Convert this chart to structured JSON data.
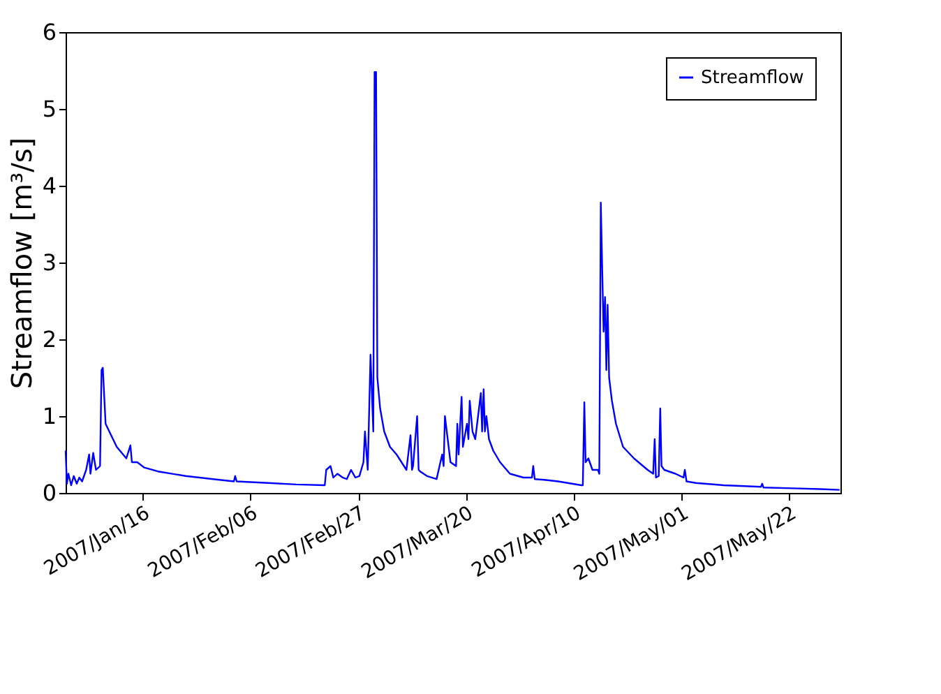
{
  "chart_data": {
    "type": "line",
    "ylabel": "Streamflow [m³/s]",
    "legend": "top right",
    "grid": false,
    "line_style": "solid",
    "xlim": [
      "2007-01-01",
      "2007-06-01"
    ],
    "ylim": [
      0,
      6
    ],
    "yticks": [
      0,
      1,
      2,
      3,
      4,
      5,
      6
    ],
    "xticks": [
      {
        "value": "2007-01-16",
        "label": "2007/Jan/16"
      },
      {
        "value": "2007-02-06",
        "label": "2007/Feb/06"
      },
      {
        "value": "2007-02-27",
        "label": "2007/Feb/27"
      },
      {
        "value": "2007-03-20",
        "label": "2007/Mar/20"
      },
      {
        "value": "2007-04-10",
        "label": "2007/Apr/10"
      },
      {
        "value": "2007-05-01",
        "label": "2007/May/01"
      },
      {
        "value": "2007-05-22",
        "label": "2007/May/22"
      }
    ],
    "series": [
      {
        "name": "Streamflow",
        "color": "#0000ff",
        "x": [
          "2007-01-01T00:00",
          "2007-01-01T06:00",
          "2007-01-01T13:00",
          "2007-01-02T02:00",
          "2007-01-02T14:00",
          "2007-01-03T04:00",
          "2007-01-03T16:00",
          "2007-01-04T05:00",
          "2007-01-05T00:00",
          "2007-01-05T14:00",
          "2007-01-05T20:00",
          "2007-01-06T09:00",
          "2007-01-06T22:00",
          "2007-01-07T17:00",
          "2007-01-08T00:00",
          "2007-01-08T06:00",
          "2007-01-08T19:00",
          "2007-01-09T21:00",
          "2007-01-10T23:00",
          "2007-01-12T20:00",
          "2007-01-13T15:00",
          "2007-01-13T22:00",
          "2007-01-14T23:00",
          "2007-01-16T08:00",
          "2007-01-19T00:00",
          "2007-01-24T09:00",
          "2007-01-29T18:00",
          "2007-02-02T19:00",
          "2007-02-03T01:00",
          "2007-02-03T08:00",
          "2007-02-09T12:00",
          "2007-02-14T22:00",
          "2007-02-20T12:00",
          "2007-02-20T19:00",
          "2007-02-21T15:00",
          "2007-02-22T04:00",
          "2007-02-22T23:00",
          "2007-02-24T00:00",
          "2007-02-24T19:00",
          "2007-02-25T15:00",
          "2007-02-26T11:00",
          "2007-02-27T06:00",
          "2007-02-28T01:00",
          "2007-02-28T08:00",
          "2007-02-28T21:00",
          "2007-03-01T10:00",
          "2007-03-01T23:00",
          "2007-03-02T05:00",
          "2007-03-02T12:00",
          "2007-03-02T18:00",
          "2007-03-03T07:00",
          "2007-03-04T02:00",
          "2007-03-05T05:00",
          "2007-03-06T12:00",
          "2007-03-08T10:00",
          "2007-03-09T05:00",
          "2007-03-09T12:00",
          "2007-03-09T17:00",
          "2007-03-10T12:00",
          "2007-03-10T19:00",
          "2007-03-11T02:00",
          "2007-03-12T10:00",
          "2007-03-14T07:00",
          "2007-03-15T09:00",
          "2007-03-15T16:00",
          "2007-03-15T22:00",
          "2007-03-17T00:00",
          "2007-03-18T02:00",
          "2007-03-18T08:00",
          "2007-03-18T14:00",
          "2007-03-19T04:00",
          "2007-03-19T10:00",
          "2007-03-20T05:00",
          "2007-03-20T12:00",
          "2007-03-20T18:00",
          "2007-03-21T07:00",
          "2007-03-21T20:00",
          "2007-03-22T22:00",
          "2007-03-23T04:00",
          "2007-03-23T11:00",
          "2007-03-23T17:00",
          "2007-03-24T00:00",
          "2007-03-24T12:00",
          "2007-03-25T08:00",
          "2007-03-26T16:00",
          "2007-03-28T14:00",
          "2007-03-31T05:00",
          "2007-04-01T21:00",
          "2007-04-02T03:00",
          "2007-04-02T10:00",
          "2007-04-04T07:00",
          "2007-04-07T00:00",
          "2007-04-11T12:00",
          "2007-04-11T19:00",
          "2007-04-12T02:00",
          "2007-04-12T08:00",
          "2007-04-12T21:00",
          "2007-04-13T16:00",
          "2007-04-14T18:00",
          "2007-04-15T00:00",
          "2007-04-15T07:00",
          "2007-04-15T13:00",
          "2007-04-15T20:00",
          "2007-04-16T03:00",
          "2007-04-16T09:00",
          "2007-04-16T15:00",
          "2007-04-16T22:00",
          "2007-04-17T11:00",
          "2007-04-18T06:00",
          "2007-04-19T15:00",
          "2007-04-21T18:00",
          "2007-04-24T10:00",
          "2007-04-25T12:00",
          "2007-04-25T19:00",
          "2007-04-26T01:00",
          "2007-04-26T14:00",
          "2007-04-26T21:00",
          "2007-04-27T03:00",
          "2007-04-27T16:00",
          "2007-04-29T20:00",
          "2007-05-01T10:00",
          "2007-05-01T16:00",
          "2007-05-02T00:00",
          "2007-05-03T20:00",
          "2007-05-09T05:00",
          "2007-05-16T12:00",
          "2007-05-16T18:00",
          "2007-05-17T00:00",
          "2007-05-22T16:00",
          "2007-05-28T00:00",
          "2007-05-31T20:00"
        ],
        "values": [
          0.55,
          0.12,
          0.25,
          0.1,
          0.22,
          0.12,
          0.2,
          0.15,
          0.3,
          0.5,
          0.25,
          0.52,
          0.3,
          0.35,
          1.6,
          1.63,
          0.9,
          0.75,
          0.6,
          0.45,
          0.62,
          0.4,
          0.4,
          0.33,
          0.28,
          0.22,
          0.18,
          0.15,
          0.22,
          0.15,
          0.13,
          0.11,
          0.1,
          0.3,
          0.35,
          0.2,
          0.25,
          0.2,
          0.18,
          0.3,
          0.2,
          0.22,
          0.4,
          0.8,
          0.3,
          1.8,
          0.8,
          5.48,
          5.48,
          1.5,
          1.1,
          0.8,
          0.6,
          0.5,
          0.3,
          0.75,
          0.3,
          0.35,
          1.0,
          0.3,
          0.28,
          0.22,
          0.18,
          0.5,
          0.35,
          1.0,
          0.4,
          0.35,
          0.9,
          0.5,
          1.25,
          0.6,
          0.9,
          0.7,
          1.2,
          0.8,
          0.7,
          1.3,
          0.8,
          1.35,
          0.8,
          1.0,
          0.7,
          0.55,
          0.4,
          0.25,
          0.2,
          0.2,
          0.35,
          0.18,
          0.17,
          0.15,
          0.1,
          0.1,
          1.18,
          0.4,
          0.45,
          0.3,
          0.3,
          0.25,
          3.78,
          3.0,
          2.1,
          2.55,
          1.6,
          2.45,
          1.5,
          1.2,
          0.9,
          0.6,
          0.45,
          0.3,
          0.25,
          0.7,
          0.2,
          0.22,
          1.1,
          0.35,
          0.3,
          0.25,
          0.2,
          0.3,
          0.15,
          0.13,
          0.1,
          0.08,
          0.12,
          0.07,
          0.06,
          0.05,
          0.04
        ]
      }
    ]
  }
}
